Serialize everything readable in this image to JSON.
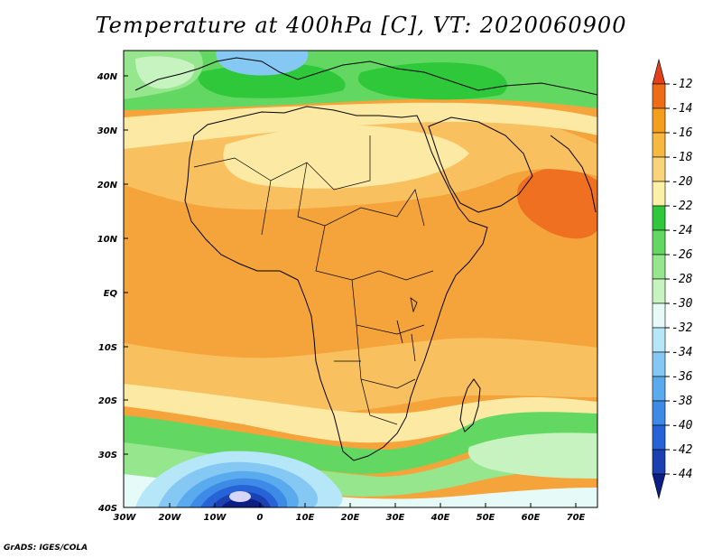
{
  "title": "Temperature at 400hPa [C], VT: 2020060900",
  "footer": "GrADS: IGES/COLA",
  "axes": {
    "lat_ticks": [
      "40N",
      "30N",
      "20N",
      "10N",
      "EQ",
      "10S",
      "20S",
      "30S",
      "40S"
    ],
    "lon_ticks": [
      "30W",
      "20W",
      "10W",
      "0",
      "10E",
      "20E",
      "30E",
      "40E",
      "50E",
      "60E",
      "70E"
    ]
  },
  "colorbar": {
    "labels": [
      "-12",
      "-14",
      "-16",
      "-18",
      "-20",
      "-22",
      "-24",
      "-26",
      "-28",
      "-30",
      "-32",
      "-34",
      "-36",
      "-38",
      "-40",
      "-42",
      "-44"
    ],
    "colors": [
      "#e3401e",
      "#ef6c16",
      "#f59e1e",
      "#f7b840",
      "#fad47a",
      "#fcefa6",
      "#2ec83a",
      "#62d862",
      "#96e68e",
      "#c7f3c0",
      "#e6fbf8",
      "#b5e7f8",
      "#86c8f4",
      "#5aaaee",
      "#3d8be6",
      "#2563d6",
      "#1a40b2",
      "#0c1e84"
    ]
  },
  "map_colors": {
    "warm_orange": "#f4a43a",
    "light_orange": "#f9c060",
    "pale_yellow": "#fce9a4",
    "hot_red": "#ee7020",
    "light_green": "#b8edb0",
    "green": "#5fd45a",
    "pale_cyan": "#e8fbf9",
    "light_blue": "#8ccff4",
    "blue": "#4a96ea",
    "dark_blue": "#1a40b0",
    "navy": "#0c1e84",
    "land_outline": "#000000"
  }
}
